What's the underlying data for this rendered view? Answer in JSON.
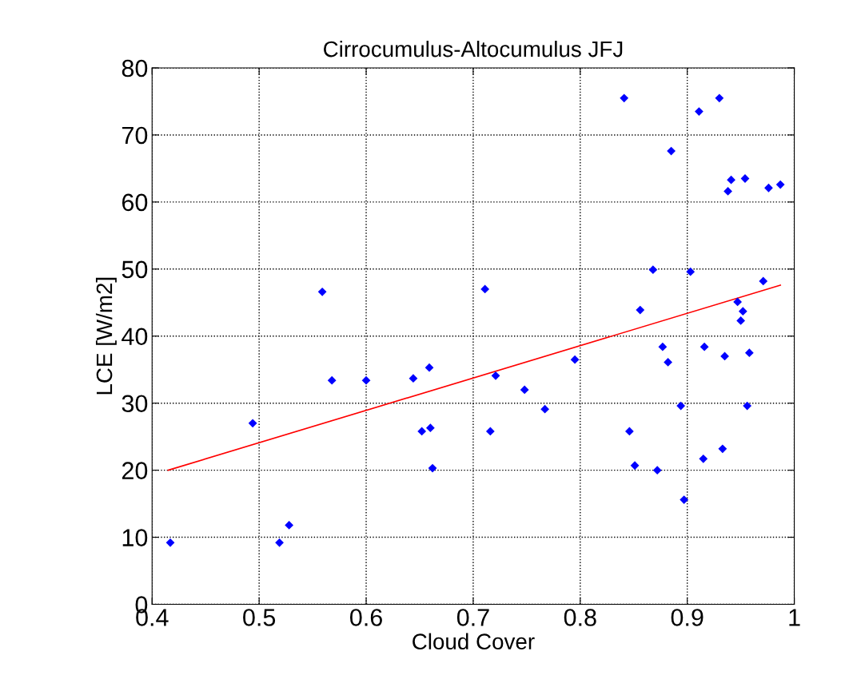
{
  "chart_data": {
    "type": "scatter",
    "title": "Cirrocumulus-Altocumulus JFJ",
    "xlabel": "Cloud Cover",
    "ylabel": "LCE [W/m2]",
    "xlim": [
      0.4,
      1.0
    ],
    "xticks": [
      0.4,
      0.5,
      0.6,
      0.7,
      0.8,
      0.9,
      1
    ],
    "ylim": [
      0,
      80
    ],
    "yticks": [
      0,
      10,
      20,
      30,
      40,
      50,
      60,
      70,
      80
    ],
    "grid": true,
    "series": [
      {
        "color": "#0000ff",
        "marker": "diamond",
        "x": [
          0.417,
          0.494,
          0.519,
          0.528,
          0.559,
          0.568,
          0.6,
          0.644,
          0.659,
          0.652,
          0.66,
          0.662,
          0.711,
          0.721,
          0.716,
          0.748,
          0.767,
          0.795,
          0.868,
          0.903,
          0.856,
          0.877,
          0.882,
          0.846,
          0.851,
          0.872,
          0.894,
          0.897,
          0.916,
          0.935,
          0.915,
          0.933,
          0.947,
          0.952,
          0.95,
          0.958,
          0.956,
          0.971,
          0.841,
          0.93,
          0.911,
          0.885,
          0.941,
          0.938,
          0.954,
          0.976,
          0.987
        ],
        "values": [
          9.2,
          27.0,
          9.2,
          11.8,
          46.6,
          33.4,
          33.4,
          33.7,
          35.3,
          25.8,
          26.3,
          20.3,
          47.0,
          34.1,
          25.8,
          32.0,
          29.1,
          36.5,
          49.9,
          49.6,
          43.9,
          38.4,
          36.1,
          25.8,
          20.7,
          20.0,
          29.6,
          15.6,
          38.4,
          37.0,
          21.7,
          23.2,
          45.1,
          43.7,
          42.3,
          37.5,
          29.6,
          48.2,
          75.5,
          75.5,
          73.5,
          67.6,
          63.3,
          61.6,
          63.5,
          62.1,
          62.6
        ]
      },
      {
        "type": "line",
        "color": "#ff0000",
        "marker": "none",
        "line_style": "solid",
        "x": [
          0.415,
          0.987
        ],
        "values": [
          20.0,
          47.6
        ]
      }
    ]
  }
}
